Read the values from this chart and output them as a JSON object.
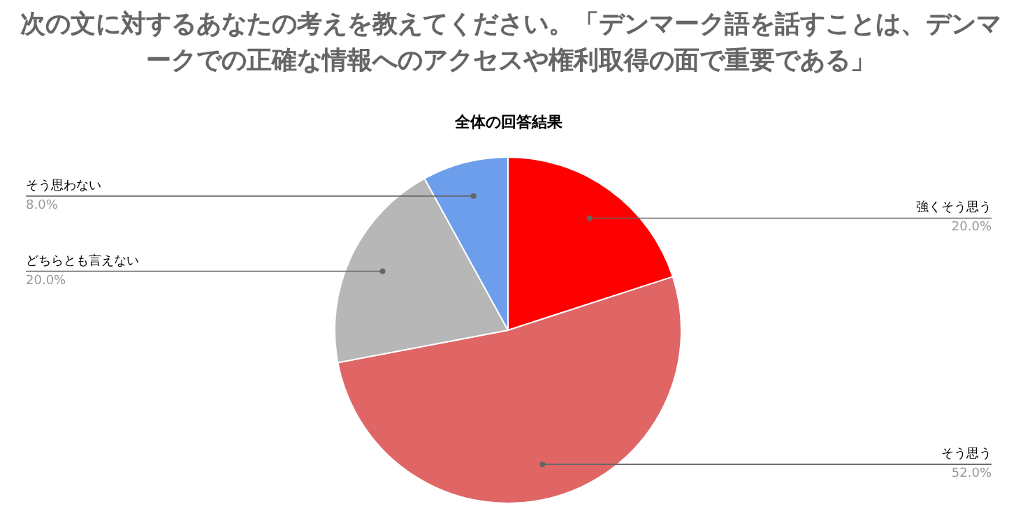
{
  "chart_data": {
    "type": "pie",
    "title": "次の文に対するあなたの考えを教えてください。「デンマーク語を話すことは、デンマークでの正確な情報へのアクセスや権利取得の面で重要である」",
    "subtitle": "全体の回答結果",
    "categories": [
      "強くそう思う",
      "そう思う",
      "どちらとも言えない",
      "そう思わない"
    ],
    "values": [
      20,
      52,
      20,
      8
    ],
    "value_labels": [
      "20.0%",
      "52.0%",
      "20.0%",
      "8.0%"
    ],
    "colors": [
      "#ff0000",
      "#e06666",
      "#b7b7b7",
      "#6d9eeb"
    ]
  }
}
